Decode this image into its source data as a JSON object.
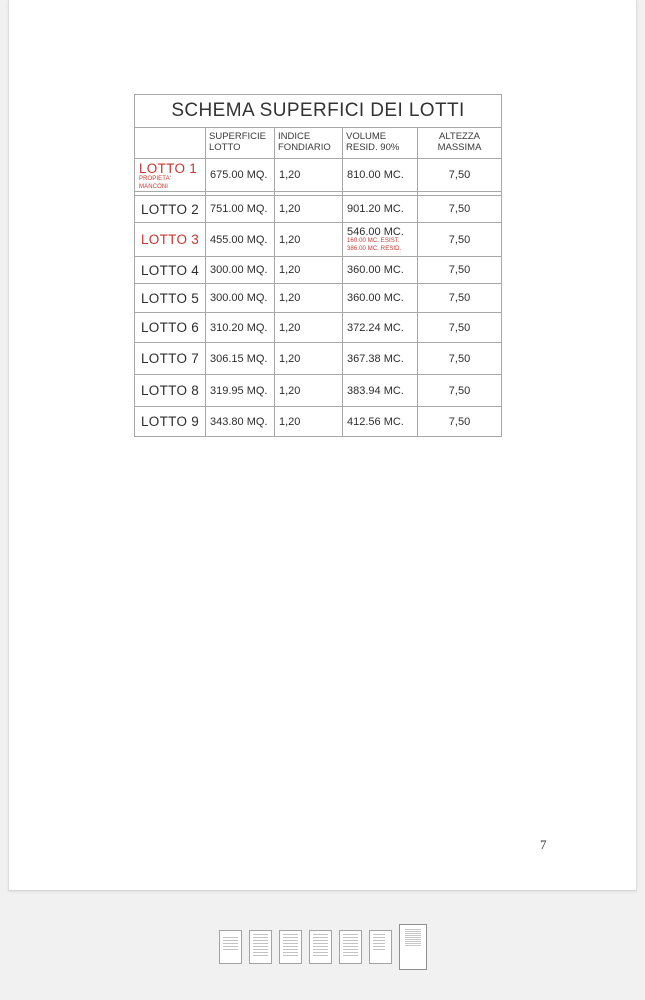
{
  "viewer": {
    "background_color": "#f1f1f1",
    "page_edge_color": "#dcdcdc"
  },
  "page": {
    "number_label": "7"
  },
  "table": {
    "title": "SCHEMA SUPERFICI DEI LOTTI",
    "border_color": "#a8a8a8",
    "accent_red": "#c4372f",
    "headers": [
      {
        "line1": "",
        "line2": ""
      },
      {
        "line1": "SUPERFICIE",
        "line2": "LOTTO"
      },
      {
        "line1": "INDICE",
        "line2": "FONDIARIO"
      },
      {
        "line1": "VOLUME",
        "line2": "RESID. 90%"
      },
      {
        "line1": "ALTEZZA",
        "line2": "MASSIMA"
      }
    ],
    "rows": [
      {
        "lotto": "LOTTO 1",
        "note1": "PROPIETA'",
        "note2": "MANCONI",
        "superficie": "675.00 MQ.",
        "indice": "1,20",
        "volume": "810.00 MC.",
        "altezza": "7,50"
      },
      {
        "lotto": "LOTTO 2",
        "superficie": "751.00 MQ.",
        "indice": "1,20",
        "volume": "901.20 MC.",
        "altezza": "7,50"
      },
      {
        "lotto": "LOTTO 3",
        "superficie": "455.00 MQ.",
        "indice": "1,20",
        "volume": "546.00 MC.",
        "vol_note1": "160.00 MC. ESIST.",
        "vol_note2": "386.00 MC. RESID.",
        "altezza": "7,50"
      },
      {
        "lotto": "LOTTO 4",
        "superficie": "300.00 MQ.",
        "indice": "1,20",
        "volume": "360.00 MC.",
        "altezza": "7,50"
      },
      {
        "lotto": "LOTTO 5",
        "superficie": "300.00 MQ.",
        "indice": "1,20",
        "volume": "360.00 MC.",
        "altezza": "7,50"
      },
      {
        "lotto": "LOTTO 6",
        "superficie": "310.20 MQ.",
        "indice": "1,20",
        "volume": "372.24 MC.",
        "altezza": "7,50"
      },
      {
        "lotto": "LOTTO 7",
        "superficie": "306.15 MQ.",
        "indice": "1,20",
        "volume": "367.38 MC.",
        "altezza": "7,50"
      },
      {
        "lotto": "LOTTO 8",
        "superficie": "319.95 MQ.",
        "indice": "1,20",
        "volume": "383.94 MC.",
        "altezza": "7,50"
      },
      {
        "lotto": "LOTTO 9",
        "superficie": "343.80 MQ.",
        "indice": "1,20",
        "volume": "412.56 MC.",
        "altezza": "7,50"
      }
    ]
  },
  "thumbnails": {
    "selected_index": 6,
    "items": [
      {
        "label": "Page 1"
      },
      {
        "label": "Page 2"
      },
      {
        "label": "Page 3"
      },
      {
        "label": "Page 4"
      },
      {
        "label": "Page 5"
      },
      {
        "label": "Page 6"
      },
      {
        "label": "Page 7"
      }
    ]
  }
}
